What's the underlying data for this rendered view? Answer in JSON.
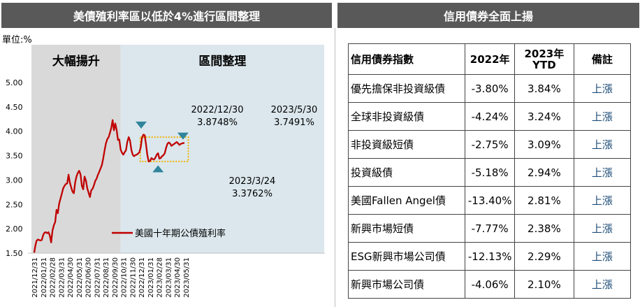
{
  "left_panel": {
    "title": "美債殖利率區以低於4%進行區間整理"
  },
  "right_panel": {
    "title": "信用債券全面上揚"
  },
  "chart_data": {
    "type": "line",
    "unit_label": "單位:%",
    "ylim": [
      1.5,
      5.0
    ],
    "y_ticks": [
      "5.00",
      "4.50",
      "4.00",
      "3.50",
      "3.00",
      "2.50",
      "2.00",
      "1.50"
    ],
    "x_ticks": [
      "2021/12/31",
      "2022/01/31",
      "2022/02/28",
      "2022/03/31",
      "2022/04/30",
      "2022/05/31",
      "2022/06/30",
      "2022/07/31",
      "2022/08/31",
      "2022/09/30",
      "2022/10/31",
      "2022/11/30",
      "2022/12/31",
      "2023/01/31",
      "2023/02/28",
      "2023/03/31",
      "2023/04/30",
      "2023/05/31"
    ],
    "series": [
      {
        "name": "美國十年期公債殖利率",
        "color": "#c00000",
        "x": [
          0,
          0.1,
          0.25,
          0.4,
          0.55,
          0.7,
          0.85,
          1.0,
          1.15,
          1.3,
          1.45,
          1.6,
          1.75,
          1.9,
          2.05,
          2.2,
          2.35,
          2.5,
          2.65,
          2.8,
          2.95,
          3.1,
          3.25,
          3.4,
          3.55,
          3.7,
          3.85,
          4.0,
          4.15,
          4.3,
          4.45,
          4.6,
          4.75,
          4.9,
          5.05,
          5.2,
          5.35,
          5.5,
          5.65,
          5.8,
          5.95,
          6.1,
          6.25,
          6.4,
          6.55,
          6.7,
          6.85,
          7.0,
          7.15,
          7.3,
          7.45,
          7.6,
          7.75,
          7.9,
          8.05,
          8.2,
          8.35,
          8.5,
          8.65,
          8.8,
          8.95,
          9.1,
          9.25,
          9.4,
          9.55,
          9.7,
          9.85,
          10.0,
          10.15,
          10.3,
          10.45,
          10.6,
          10.75,
          10.9,
          11.05,
          11.2,
          11.35,
          11.5,
          11.65,
          11.8,
          11.95,
          12.1,
          12.25,
          12.4,
          12.55,
          12.7,
          12.85,
          13.0,
          13.15,
          13.3,
          13.45,
          13.6,
          13.75,
          13.9,
          14.05,
          14.2,
          14.35,
          14.5,
          14.65,
          14.8,
          14.95,
          15.1,
          15.25,
          15.4,
          15.55,
          15.7,
          15.85,
          16.0,
          16.15,
          16.3,
          16.45,
          16.6,
          16.75,
          16.85
        ],
        "values": [
          1.51,
          1.63,
          1.75,
          1.78,
          1.77,
          1.76,
          1.77,
          1.87,
          1.92,
          1.93,
          1.91,
          1.93,
          1.86,
          1.72,
          1.96,
          2.07,
          2.14,
          2.39,
          2.32,
          2.52,
          2.62,
          2.72,
          2.83,
          2.88,
          2.92,
          2.93,
          3.11,
          2.95,
          2.85,
          2.76,
          2.73,
          2.96,
          3.08,
          3.15,
          3.19,
          3.11,
          2.88,
          2.81,
          3.07,
          2.99,
          2.83,
          2.74,
          2.65,
          2.79,
          2.82,
          2.89,
          2.98,
          3.03,
          3.11,
          3.17,
          3.24,
          3.31,
          3.45,
          3.61,
          3.75,
          3.84,
          3.88,
          3.97,
          4.07,
          4.23,
          4.02,
          4.16,
          4.03,
          3.82,
          3.83,
          3.62,
          3.56,
          3.52,
          3.57,
          3.61,
          3.78,
          3.88,
          3.81,
          3.62,
          3.52,
          3.49,
          3.51,
          3.52,
          3.54,
          3.57,
          3.67,
          3.87,
          3.93,
          3.92,
          3.73,
          3.51,
          3.38,
          3.39,
          3.45,
          3.43,
          3.42,
          3.46,
          3.52,
          3.55,
          3.44,
          3.45,
          3.49,
          3.51,
          3.55,
          3.66,
          3.74,
          3.77,
          3.75,
          3.7,
          3.72,
          3.74,
          3.76,
          3.78,
          3.75,
          3.72,
          3.74,
          3.75,
          3.76,
          3.75
        ]
      }
    ],
    "regions": [
      {
        "label": "大幅揚升",
        "x_range": [
          0,
          9.7
        ]
      },
      {
        "label": "區間整理",
        "x_range": [
          9.7,
          17.5
        ]
      }
    ],
    "annotations": [
      {
        "date": "2022/12/30",
        "value": "3.8748%",
        "marker": "down"
      },
      {
        "date": "2023/5/30",
        "value": "3.7491%",
        "marker": "down"
      },
      {
        "date": "2023/3/24",
        "value": "3.3762%",
        "marker": "up"
      }
    ],
    "range_box": {
      "y_range": [
        3.38,
        3.88
      ],
      "x_range": [
        11.9,
        17.3
      ]
    },
    "legend": "center-left"
  },
  "table": {
    "headers": [
      "信用債券指數",
      "2022年",
      "2023年\nYTD",
      "備註"
    ],
    "rows": [
      {
        "name": "優先擔保非投資級債",
        "y2022": "-3.80%",
        "ytd": "3.84%",
        "note": "上漲"
      },
      {
        "name": "全球非投資級債",
        "y2022": "-4.24%",
        "ytd": "3.24%",
        "note": "上漲"
      },
      {
        "name": "非投資級短債",
        "y2022": "-2.75%",
        "ytd": "3.09%",
        "note": "上漲"
      },
      {
        "name": "投資級債",
        "y2022": "-5.18%",
        "ytd": "2.94%",
        "note": "上漲"
      },
      {
        "name": "美國Fallen Angel債",
        "y2022": "-13.40%",
        "ytd": "2.81%",
        "note": "上漲"
      },
      {
        "name": "新興市場短債",
        "y2022": "-7.77%",
        "ytd": "2.38%",
        "note": "上漲"
      },
      {
        "name": "ESG新興市場公司債",
        "y2022": "-12.13%",
        "ytd": "2.29%",
        "note": "上漲"
      },
      {
        "name": "新興市場公司債",
        "y2022": "-4.06%",
        "ytd": "2.10%",
        "note": "上漲"
      }
    ]
  }
}
